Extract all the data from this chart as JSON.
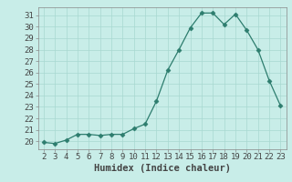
{
  "x": [
    2,
    3,
    4,
    5,
    6,
    7,
    8,
    9,
    10,
    11,
    12,
    13,
    14,
    15,
    16,
    17,
    18,
    19,
    20,
    21,
    22,
    23
  ],
  "y": [
    19.9,
    19.8,
    20.1,
    20.6,
    20.6,
    20.5,
    20.6,
    20.6,
    21.1,
    21.5,
    23.5,
    26.2,
    28.0,
    29.9,
    31.2,
    31.2,
    30.2,
    31.1,
    29.7,
    28.0,
    25.3,
    23.1
  ],
  "line_color": "#2d7d6e",
  "marker": "D",
  "marker_size": 2.5,
  "bg_color": "#c8ede8",
  "grid_color": "#a8d8d0",
  "xlabel": "Humidex (Indice chaleur)",
  "ylabel": "",
  "xlim": [
    1.5,
    23.5
  ],
  "ylim": [
    19.3,
    31.7
  ],
  "yticks": [
    20,
    21,
    22,
    23,
    24,
    25,
    26,
    27,
    28,
    29,
    30,
    31
  ],
  "xticks": [
    2,
    3,
    4,
    5,
    6,
    7,
    8,
    9,
    10,
    11,
    12,
    13,
    14,
    15,
    16,
    17,
    18,
    19,
    20,
    21,
    22,
    23
  ],
  "label_fontsize": 7.5,
  "tick_fontsize": 6.5,
  "spine_color": "#888888",
  "tick_color": "#444444"
}
